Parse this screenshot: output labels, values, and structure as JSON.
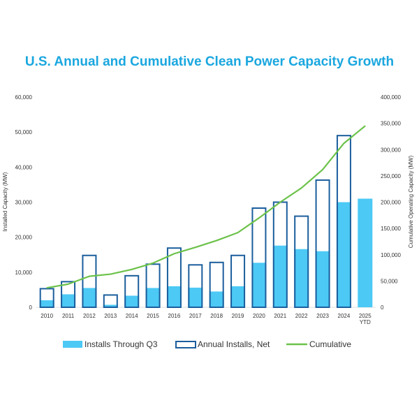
{
  "chart_data": {
    "type": "bar",
    "title": "U.S. Annual and Cumulative Clean Power Capacity Growth",
    "categories": [
      "2010",
      "2011",
      "2012",
      "2013",
      "2014",
      "2015",
      "2016",
      "2017",
      "2018",
      "2019",
      "2020",
      "2021",
      "2022",
      "2023",
      "2024",
      "2025 YTD"
    ],
    "category_lines": [
      [
        "2010"
      ],
      [
        "2011"
      ],
      [
        "2012"
      ],
      [
        "2013"
      ],
      [
        "2014"
      ],
      [
        "2015"
      ],
      [
        "2016"
      ],
      [
        "2017"
      ],
      [
        "2018"
      ],
      [
        "2019"
      ],
      [
        "2020"
      ],
      [
        "2021"
      ],
      [
        "2022"
      ],
      [
        "2023"
      ],
      [
        "2024"
      ],
      [
        "2025",
        "YTD"
      ]
    ],
    "ylabel": "Installed Capacity (MW)",
    "y2label": "Cumulative Operating Capacity (MW)",
    "ylim": [
      0,
      60000
    ],
    "y2lim": [
      0,
      400000
    ],
    "y_ticks": [
      "0",
      "10,000",
      "20,000",
      "30,000",
      "40,000",
      "50,000",
      "60,000"
    ],
    "y2_ticks": [
      "0",
      "50,000",
      "100,000",
      "150,000",
      "200,000",
      "250,000",
      "300,000",
      "350,000",
      "400,000"
    ],
    "legend_position": "bottom",
    "grid": false,
    "series": [
      {
        "name": "Installs Through Q3",
        "kind": "bar-filled",
        "axis": "left",
        "color": "#4cc9f5",
        "values": [
          2000,
          3700,
          5500,
          700,
          3300,
          5500,
          6000,
          5600,
          4500,
          6000,
          12700,
          17600,
          16600,
          16000,
          30000,
          31000
        ]
      },
      {
        "name": "Annual Installs, Net",
        "kind": "bar-outline",
        "axis": "left",
        "color": "#1b5e9c",
        "values": [
          5500,
          7500,
          15000,
          3700,
          9200,
          12500,
          17100,
          12300,
          13000,
          15000,
          28500,
          30200,
          26200,
          36500,
          49200,
          null
        ]
      },
      {
        "name": "Cumulative",
        "kind": "line",
        "axis": "right",
        "color": "#6cc24a",
        "values": [
          37000,
          44000,
          59000,
          63000,
          72000,
          84000,
          102000,
          114000,
          127000,
          142000,
          170000,
          200000,
          227000,
          262000,
          312000,
          345000
        ]
      }
    ]
  }
}
